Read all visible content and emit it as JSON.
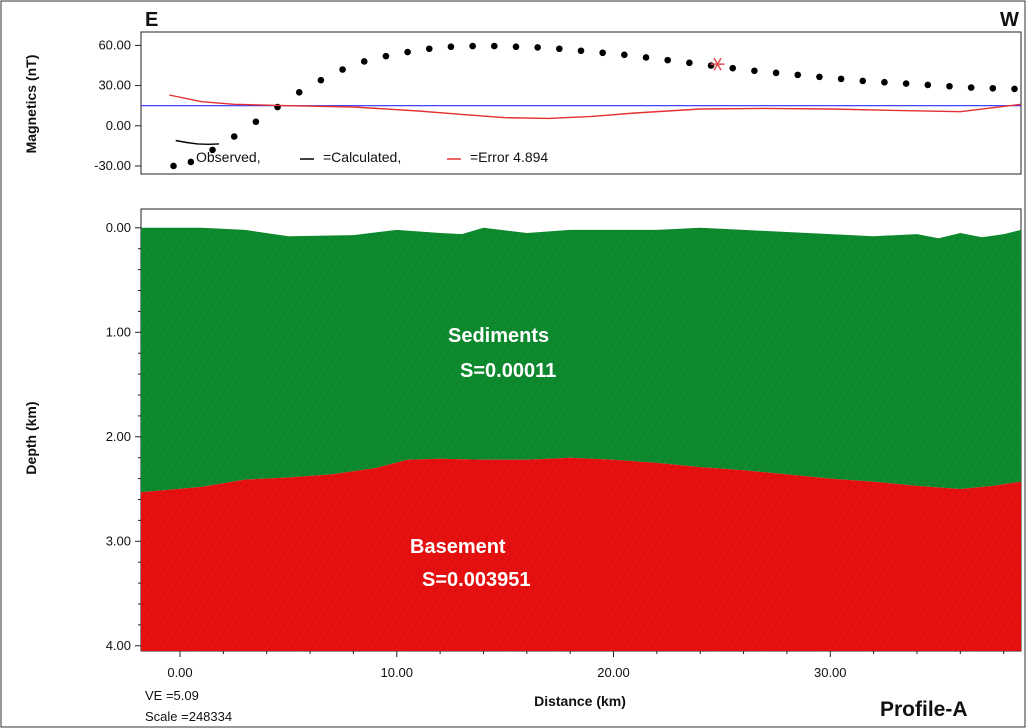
{
  "chart_data": [
    {
      "type": "line",
      "panel": "magnetics",
      "ylabel": "Magnetics (nT)",
      "yticks": [
        "60.00",
        "30.00",
        "0.00",
        "-30.00"
      ],
      "ytick_values": [
        60,
        30,
        0,
        -30
      ],
      "ylim": [
        -36,
        70
      ],
      "xlim": [
        -1.8,
        38.8
      ],
      "legend": [
        "Observed,",
        "=Calculated,",
        "=Error 4.894"
      ],
      "legend_placement": "bottom-left",
      "series": [
        {
          "name": "Observed",
          "style": "dots",
          "color": "#000000",
          "x": [
            -0.3,
            0.5,
            1.5,
            2.5,
            3.5,
            4.5,
            5.5,
            6.5,
            7.5,
            8.5,
            9.5,
            10.5,
            11.5,
            12.5,
            13.5,
            14.5,
            15.5,
            16.5,
            17.5,
            18.5,
            19.5,
            20.5,
            21.5,
            22.5,
            23.5,
            24.5,
            25.5,
            26.5,
            27.5,
            28.5,
            29.5,
            30.5,
            31.5,
            32.5,
            33.5,
            34.5,
            35.5,
            36.5,
            37.5,
            38.5
          ],
          "y": [
            -30,
            -27,
            -18,
            -8,
            3,
            14,
            25,
            34,
            42,
            48,
            52,
            55,
            57.5,
            59,
            59.5,
            59.5,
            59,
            58.5,
            57.5,
            56,
            54.5,
            53,
            51,
            49,
            47,
            45,
            43,
            41,
            39.5,
            38,
            36.5,
            35,
            33.5,
            32.5,
            31.5,
            30.5,
            29.5,
            28.5,
            28,
            27.5
          ]
        },
        {
          "name": "Calculated",
          "style": "line",
          "color": "#000000",
          "x": [
            -0.2,
            0.3,
            0.8,
            1.3,
            1.8
          ],
          "y": [
            -11,
            -12.5,
            -13.5,
            -13.8,
            -13.5
          ]
        },
        {
          "name": "Error",
          "style": "line",
          "color": "#e53030",
          "x": [
            -0.5,
            1,
            2.5,
            5,
            8,
            11,
            13,
            15,
            17,
            19,
            21,
            24,
            27,
            30,
            33,
            36,
            38.8
          ],
          "y": [
            23,
            18,
            16,
            15,
            14,
            11,
            8.5,
            6,
            5.5,
            7,
            9.5,
            12.5,
            13,
            12.5,
            11.5,
            10.5,
            16
          ]
        }
      ],
      "reference_line": {
        "y": 15,
        "color": "#2b2bff"
      },
      "marker": {
        "x": 24.8,
        "y": 46,
        "symbol": "asterisk",
        "color": "#e05050"
      }
    },
    {
      "type": "area",
      "panel": "depth-model",
      "xlabel": "Distance (km)",
      "ylabel": "Depth (km)",
      "xticks": [
        "0.00",
        "10.00",
        "20.00",
        "30.00"
      ],
      "xtick_values": [
        0,
        10,
        20,
        30
      ],
      "yticks": [
        "0.00",
        "1.00",
        "2.00",
        "3.00",
        "4.00"
      ],
      "ytick_values": [
        0,
        1,
        2,
        3,
        4
      ],
      "xlim": [
        -1.8,
        38.8
      ],
      "ylim": [
        4.05,
        -0.18
      ],
      "bodies": [
        {
          "name": "Sediments",
          "label": "Sediments",
          "sublabel": "S=0.00011",
          "color": "#0e8a2e",
          "top_x": [
            -1.8,
            1,
            3,
            5,
            8,
            10,
            12,
            13,
            14,
            16,
            18,
            20,
            22,
            24,
            26,
            28,
            30,
            32,
            34,
            35,
            36,
            37,
            38,
            38.8
          ],
          "top_y": [
            0.0,
            0.0,
            0.02,
            0.08,
            0.07,
            0.02,
            0.05,
            0.06,
            0.0,
            0.05,
            0.02,
            0.02,
            0.02,
            0.0,
            0.02,
            0.04,
            0.06,
            0.08,
            0.06,
            0.1,
            0.05,
            0.09,
            0.06,
            0.02
          ]
        },
        {
          "name": "Basement",
          "label": "Basement",
          "sublabel": "S=0.003951",
          "color": "#e61010",
          "top_x": [
            -1.8,
            1,
            3,
            5,
            7,
            9,
            10.5,
            12,
            14,
            16,
            18,
            20,
            22,
            24,
            26,
            28,
            30,
            32,
            34,
            36,
            37.5,
            38.8
          ],
          "top_y": [
            2.53,
            2.48,
            2.41,
            2.39,
            2.36,
            2.3,
            2.22,
            2.21,
            2.22,
            2.22,
            2.2,
            2.22,
            2.25,
            2.29,
            2.32,
            2.36,
            2.4,
            2.43,
            2.47,
            2.5,
            2.47,
            2.43
          ]
        }
      ]
    }
  ],
  "labels": {
    "east": "E",
    "west": "W",
    "ve": "VE =5.09",
    "scale": "Scale =248334",
    "profile": "Profile-A"
  }
}
